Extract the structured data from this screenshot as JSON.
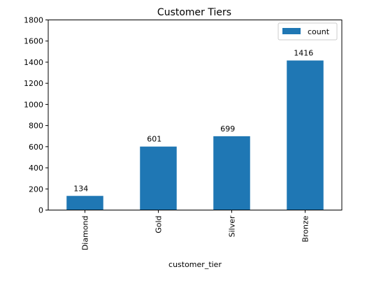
{
  "chart_data": {
    "type": "bar",
    "title": "Customer Tiers",
    "xlabel": "customer_tier",
    "ylabel": "",
    "categories": [
      "Diamond",
      "Gold",
      "Silver",
      "Bronze"
    ],
    "series": [
      {
        "name": "count",
        "values": [
          134,
          601,
          699,
          1416
        ],
        "color": "#1f77b4"
      }
    ],
    "data_labels": [
      "134",
      "601",
      "699",
      "1416"
    ],
    "ylim": [
      0,
      1800
    ],
    "yticks": [
      0,
      200,
      400,
      600,
      800,
      1000,
      1200,
      1400,
      1600,
      1800
    ],
    "ytick_labels": [
      "0",
      "200",
      "400",
      "600",
      "800",
      "1000",
      "1200",
      "1400",
      "1600",
      "1800"
    ],
    "grid": false,
    "legend_position": "top-right",
    "x_tick_rotation": "vertical"
  }
}
